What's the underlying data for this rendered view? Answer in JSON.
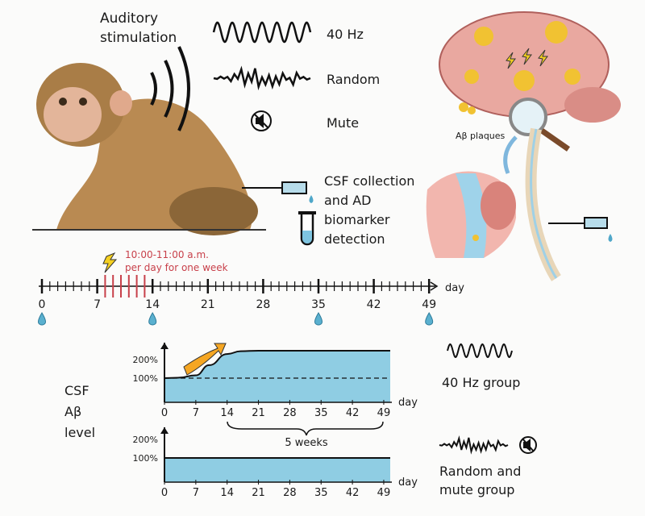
{
  "stimulation": {
    "title_line1": "Auditory",
    "title_line2": "stimulation",
    "options": [
      {
        "label": "40 Hz",
        "icon": "sine-wave-icon"
      },
      {
        "label": "Random",
        "icon": "random-wave-icon"
      },
      {
        "label": "Mute",
        "icon": "mute-speaker-icon"
      }
    ]
  },
  "csf": {
    "line1": "CSF collection",
    "line2": "and AD",
    "line3": "biomarker",
    "line4": "detection"
  },
  "brain": {
    "plaques_label": "Aβ plaques"
  },
  "timeline": {
    "stim_note_line1": "10:00-11:00 a.m.",
    "stim_note_line2": "per day for one week",
    "axis_label": "day",
    "ticks": [
      "0",
      "7",
      "14",
      "21",
      "28",
      "35",
      "42",
      "49"
    ],
    "stim_days": [
      8,
      9,
      10,
      11,
      12,
      13
    ],
    "collection_days": [
      0,
      14,
      35,
      49
    ],
    "stim_color": "#c8404a"
  },
  "plots": {
    "ylabel_line1": "CSF",
    "ylabel_line2": "Aβ",
    "ylabel_line3": "level",
    "y_ticks": [
      "200%",
      "100%"
    ],
    "x_ticks": [
      "0",
      "7",
      "14",
      "21",
      "28",
      "35",
      "42",
      "49"
    ],
    "xlabel": "day",
    "brace_label": "5 weeks",
    "fill_color": "#8fcde3",
    "groups": [
      {
        "label": "40 Hz group",
        "days": [
          0,
          3,
          7,
          10,
          14,
          17,
          21,
          49
        ],
        "values": [
          100,
          102,
          115,
          170,
          230,
          245,
          248,
          248
        ]
      },
      {
        "label_line1": "Random and",
        "label_line2": "mute group",
        "days": [
          0,
          49
        ],
        "values": [
          100,
          100
        ]
      }
    ]
  }
}
